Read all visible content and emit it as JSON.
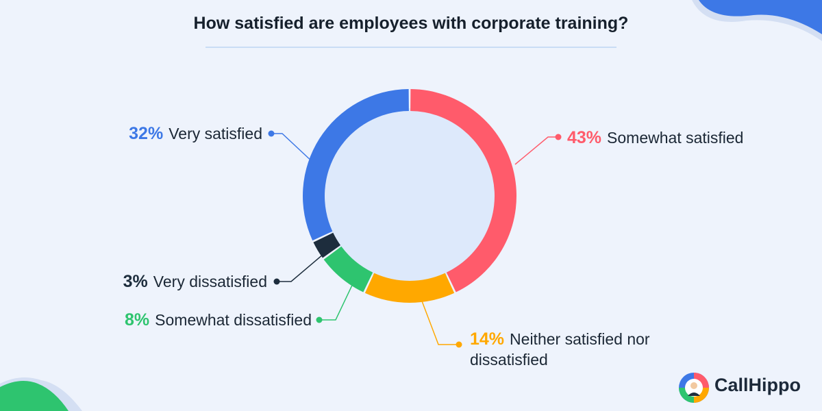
{
  "chart_data": {
    "type": "pie",
    "title": "How satisfied are employees with corporate training?",
    "categories": [
      "Somewhat satisfied",
      "Neither satisfied nor dissatisfied",
      "Somewhat dissatisfied",
      "Very dissatisfied",
      "Very satisfied"
    ],
    "values": [
      43,
      14,
      8,
      3,
      32
    ],
    "value_labels": [
      "43%",
      "14%",
      "8%",
      "3%",
      "32%"
    ],
    "colors": [
      "#ff5b6b",
      "#ffa800",
      "#2ec46f",
      "#1d2d3d",
      "#3d78e6"
    ],
    "donut": true
  },
  "brand": "CallHippo"
}
